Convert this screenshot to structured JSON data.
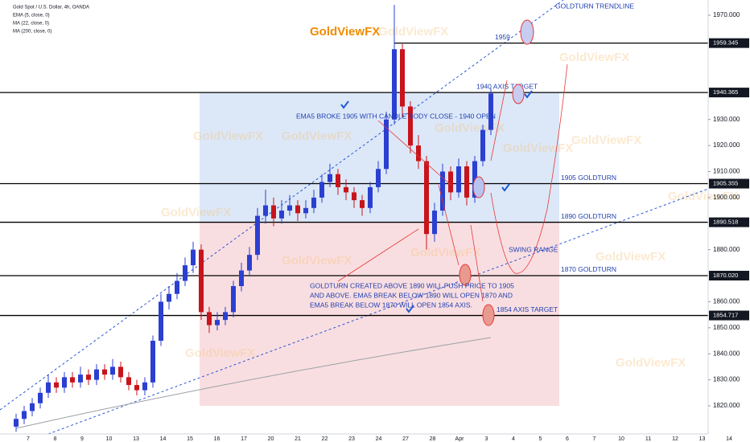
{
  "chart_data": {
    "type": "candlestick",
    "title": "Gold Spot / U.S. Dollar, 4h, OANDA",
    "indicators": [
      "EMA (5, close, 0)",
      "MA (22, close, 0)",
      "MA (200, close, 0)"
    ],
    "watermark": "GoldViewFX",
    "annotations": {
      "trendline": "GOLDTURN TRENDLINE",
      "ema_note": "EMA5 BROKE 1905 WITH CANDLE BODY CLOSE - 1940 OPEN",
      "goldturn_note_1": "GOLDTURN CREATED ABOVE 1890 WILL PUSH PRICE TO 1905",
      "goldturn_note_2": "AND ABOVE. EMA5 BREAK BELOW 1890 WILL OPEN 1870 AND",
      "goldturn_note_3": "EMA5 BREAK BELOW 1870 WILL OPEN 1854 AXIS.",
      "swing": "SWING RANGE"
    },
    "x_labels": [
      "7",
      "8",
      "9",
      "10",
      "13",
      "14",
      "15",
      "16",
      "17",
      "20",
      "21",
      "22",
      "23",
      "24",
      "27",
      "28",
      "Apr",
      "3",
      "4",
      "5",
      "6",
      "7",
      "10",
      "11",
      "12",
      "13",
      "14"
    ],
    "open": [
      1812,
      1815,
      1818,
      1821,
      1825,
      1829,
      1827,
      1831,
      1829,
      1832,
      1830,
      1834,
      1832,
      1835,
      1831,
      1828,
      1826,
      1829,
      1845,
      1860,
      1863,
      1868,
      1874,
      1880,
      1856,
      1851,
      1853,
      1856,
      1866,
      1872,
      1878,
      1893,
      1897,
      1892,
      1895,
      1897,
      1894,
      1896,
      1900,
      1906,
      1909,
      1904,
      1902,
      1899,
      1896,
      1904,
      1911,
      1930,
      1957,
      1935,
      1920,
      1914,
      1886,
      1895,
      1910,
      1902,
      1912,
      1900,
      1914,
      1926
    ],
    "close": [
      1815,
      1818,
      1821,
      1825,
      1829,
      1827,
      1831,
      1829,
      1832,
      1830,
      1834,
      1832,
      1835,
      1831,
      1828,
      1826,
      1829,
      1845,
      1860,
      1863,
      1868,
      1874,
      1880,
      1856,
      1851,
      1853,
      1856,
      1866,
      1872,
      1878,
      1893,
      1897,
      1892,
      1895,
      1897,
      1894,
      1896,
      1900,
      1906,
      1909,
      1904,
      1902,
      1899,
      1896,
      1904,
      1911,
      1930,
      1957,
      1935,
      1920,
      1914,
      1886,
      1895,
      1910,
      1902,
      1912,
      1900,
      1914,
      1926,
      1940
    ],
    "high": [
      1817,
      1820,
      1823,
      1827,
      1832,
      1831,
      1833,
      1833,
      1835,
      1834,
      1836,
      1836,
      1838,
      1837,
      1833,
      1830,
      1831,
      1847,
      1863,
      1866,
      1871,
      1877,
      1883,
      1882,
      1858,
      1856,
      1858,
      1868,
      1875,
      1881,
      1896,
      1903,
      1900,
      1899,
      1901,
      1899,
      1899,
      1903,
      1909,
      1913,
      1911,
      1907,
      1904,
      1901,
      1906,
      1914,
      1933,
      1974,
      1959,
      1937,
      1924,
      1916,
      1898,
      1913,
      1912,
      1915,
      1914,
      1916,
      1928,
      1942
    ],
    "low": [
      1810,
      1813,
      1816,
      1819,
      1823,
      1825,
      1825,
      1827,
      1827,
      1828,
      1828,
      1830,
      1830,
      1829,
      1826,
      1824,
      1824,
      1827,
      1843,
      1857,
      1861,
      1866,
      1871,
      1853,
      1848,
      1849,
      1851,
      1854,
      1864,
      1870,
      1876,
      1890,
      1889,
      1890,
      1893,
      1891,
      1892,
      1894,
      1898,
      1904,
      1901,
      1899,
      1896,
      1893,
      1894,
      1902,
      1909,
      1928,
      1931,
      1917,
      1911,
      1880,
      1883,
      1893,
      1899,
      1900,
      1897,
      1898,
      1912,
      1924
    ],
    "up_color": "#2b3fd1",
    "down_color": "#c8141b",
    "levels": [
      {
        "value": 1959.345,
        "label": "1959",
        "value_label": "1959.345"
      },
      {
        "value": 1940.365,
        "label": "1940 AXIS TARGET",
        "value_label": "1940.365"
      },
      {
        "value": 1905.355,
        "label": "1905 GOLDTURN",
        "value_label": "1905.355"
      },
      {
        "value": 1890.518,
        "label": "1890 GOLDTURN",
        "value_label": "1890.518"
      },
      {
        "value": 1870.02,
        "label": "1870 GOLDTURN",
        "value_label": "1870.020"
      },
      {
        "value": 1854.717,
        "label": "1854 AXIS TARGET",
        "value_label": "1854.717"
      }
    ],
    "zones": [
      {
        "top": 1940.365,
        "bottom": 1890.518,
        "color": "#d6e4f7"
      },
      {
        "top": 1890.518,
        "bottom": 1820,
        "color": "#f8d8dc"
      }
    ],
    "ylim": [
      1809.2,
      1975.9
    ],
    "yticks": [
      {
        "value": 1820,
        "label": "1820.000"
      },
      {
        "value": 1830,
        "label": "1830.000"
      },
      {
        "value": 1840,
        "label": "1840.000"
      },
      {
        "value": 1850,
        "label": "1850.000"
      },
      {
        "value": 1860,
        "label": "1860.000"
      },
      {
        "value": 1880,
        "label": "1880.000"
      },
      {
        "value": 1900,
        "label": "1900.000"
      },
      {
        "value": 1910,
        "label": "1910.000"
      },
      {
        "value": 1920,
        "label": "1920.000"
      },
      {
        "value": 1930,
        "label": "1930.000"
      },
      {
        "value": 1970,
        "label": "1970.000"
      }
    ]
  }
}
